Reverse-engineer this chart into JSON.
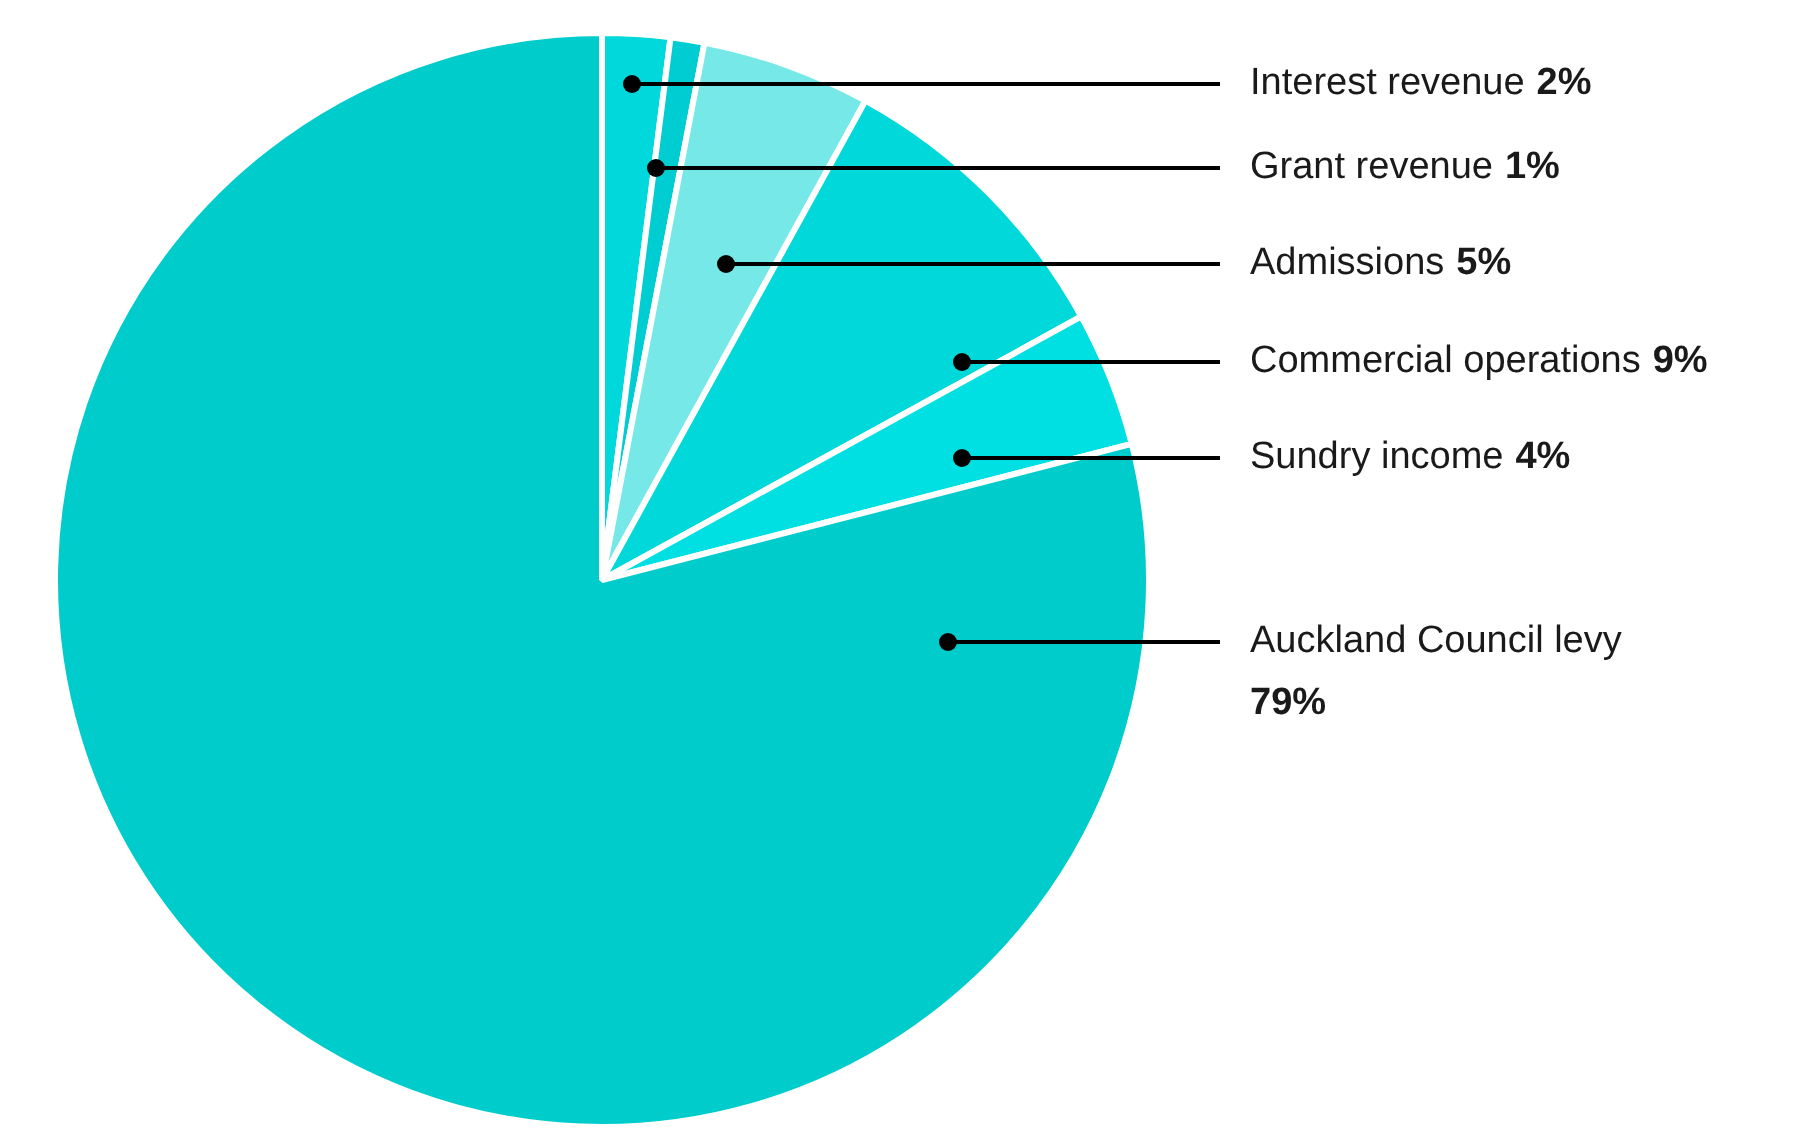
{
  "chart_data": {
    "type": "pie",
    "categories": [
      "Interest revenue",
      "Grant revenue",
      "Admissions",
      "Commercial operations",
      "Sundry income",
      "Auckland Council levy"
    ],
    "values": [
      2,
      1,
      5,
      9,
      4,
      79
    ],
    "value_labels": [
      "2%",
      "1%",
      "5%",
      "9%",
      "4%",
      "79%"
    ],
    "colors": [
      "#00d8dc",
      "#00cdd2",
      "#76e8e8",
      "#00d8da",
      "#00e0e2",
      "#00cccc"
    ]
  }
}
